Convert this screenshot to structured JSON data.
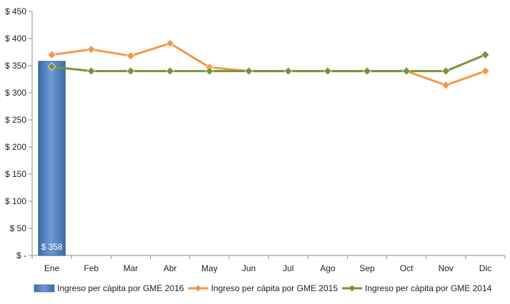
{
  "chart_data": {
    "type": "bar",
    "categories": [
      "Ene",
      "Feb",
      "Mar",
      "Abr",
      "May",
      "Jun",
      "Jul",
      "Ago",
      "Sep",
      "Oct",
      "Nov",
      "Dic"
    ],
    "y_ticks": [
      "$ -",
      "$ 50",
      "$ 100",
      "$ 150",
      "$ 200",
      "$ 250",
      "$ 300",
      "$ 350",
      "$ 400",
      "$ 450"
    ],
    "ylim": [
      0,
      450
    ],
    "grid": false,
    "legend_position": "bottom",
    "series": [
      {
        "name": "Ingreso per cápita por GME 2016",
        "type": "bar",
        "color": "#4f81bd",
        "values": [
          358,
          null,
          null,
          null,
          null,
          null,
          null,
          null,
          null,
          null,
          null,
          null
        ],
        "data_labels": [
          "$ 358"
        ]
      },
      {
        "name": "Ingreso per cápita por GME 2015",
        "type": "line",
        "color": "#f79646",
        "marker": "diamond",
        "values": [
          370,
          380,
          368,
          391,
          347,
          340,
          340,
          340,
          340,
          340,
          314,
          340
        ]
      },
      {
        "name": "Ingreso per cápita por GME 2014",
        "type": "line",
        "color": "#77933c",
        "marker": "diamond",
        "values": [
          348,
          340,
          340,
          340,
          340,
          340,
          340,
          340,
          340,
          340,
          340,
          370
        ]
      }
    ]
  }
}
